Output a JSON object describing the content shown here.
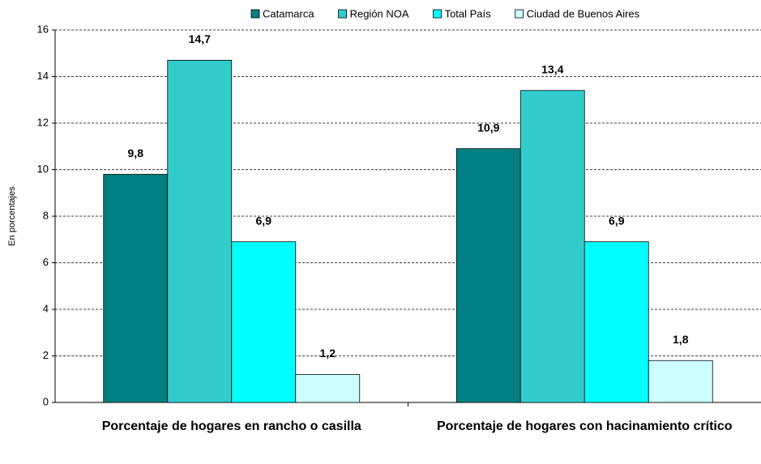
{
  "chart_data": {
    "type": "bar",
    "y_label": "En porcentajes",
    "categories": [
      "Porcentaje de hogares en rancho o casilla",
      "Porcentaje de hogares con hacinamiento crítico"
    ],
    "series": [
      {
        "name": "Catamarca",
        "color": "#008080",
        "values": [
          9.8,
          10.9
        ],
        "value_labels": [
          "9,8",
          "10,9"
        ]
      },
      {
        "name": "Región NOA",
        "color": "#33CCCC",
        "values": [
          14.7,
          13.4
        ],
        "value_labels": [
          "14,7",
          "13,4"
        ]
      },
      {
        "name": "Total País",
        "color": "#00FFFF",
        "values": [
          6.9,
          6.9
        ],
        "value_labels": [
          "6,9",
          "6,9"
        ]
      },
      {
        "name": "Ciudad de Buenos Aires",
        "color": "#CCFFFF",
        "values": [
          1.2,
          1.8
        ],
        "value_labels": [
          "1,2",
          "1,8"
        ]
      }
    ],
    "ylim": [
      0,
      16
    ],
    "yticks": [
      0,
      2,
      4,
      6,
      8,
      10,
      12,
      14,
      16
    ],
    "grid": true,
    "legend": "top"
  }
}
